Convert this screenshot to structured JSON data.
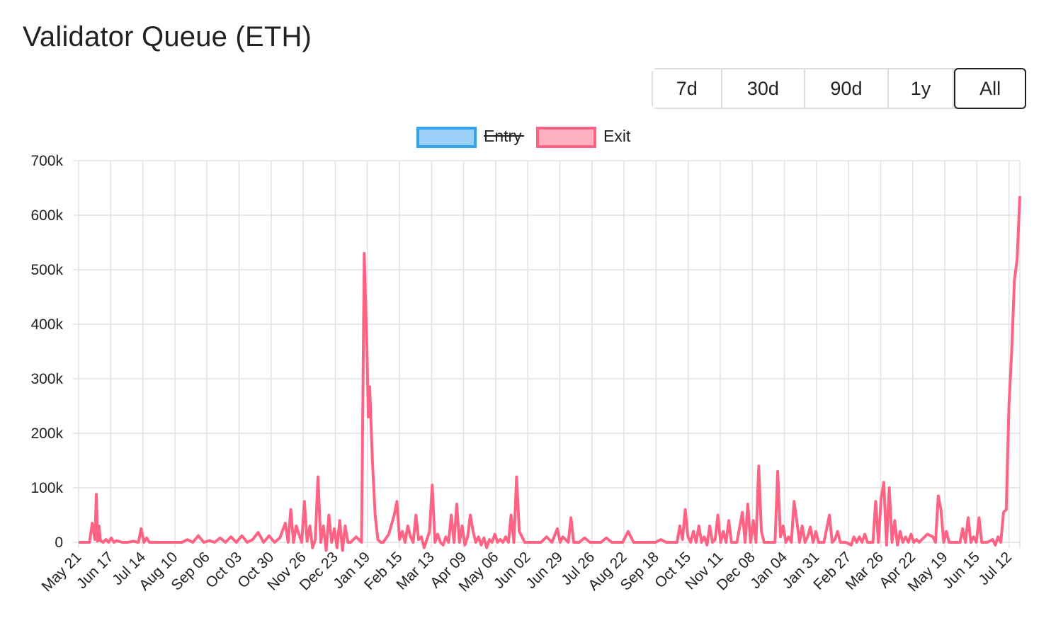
{
  "title": "Validator Queue (ETH)",
  "range_buttons": [
    {
      "label": "7d",
      "active": false
    },
    {
      "label": "30d",
      "active": false
    },
    {
      "label": "90d",
      "active": false
    },
    {
      "label": "1y",
      "active": false
    },
    {
      "label": "All",
      "active": true
    }
  ],
  "chart_data": {
    "type": "line",
    "legend_position": "top-center",
    "grid": true,
    "ylim": [
      0,
      700000
    ],
    "y_ticks": [
      "0",
      "100k",
      "200k",
      "300k",
      "400k",
      "500k",
      "600k",
      "700k"
    ],
    "y_tick_values": [
      0,
      100000,
      200000,
      300000,
      400000,
      500000,
      600000,
      700000
    ],
    "x_tick_labels": [
      "May 21",
      "Jun 17",
      "Jul 14",
      "Aug 10",
      "Sep 06",
      "Oct 03",
      "Oct 30",
      "Nov 26",
      "Dec 23",
      "Jan 19",
      "Feb 15",
      "Mar 13",
      "Apr 09",
      "May 06",
      "Jun 02",
      "Jun 29",
      "Jul 26",
      "Aug 22",
      "Sep 18",
      "Oct 15",
      "Nov 11",
      "Dec 08",
      "Jan 04",
      "Jan 31",
      "Feb 27",
      "Mar 26",
      "Apr 22",
      "May 19",
      "Jun 15",
      "Jul 12"
    ],
    "series": [
      {
        "name": "Entry",
        "hidden": true,
        "color": "#36a2eb",
        "fill": "#9ad0f5",
        "points": []
      },
      {
        "name": "Exit",
        "hidden": false,
        "color": "#ff6384",
        "fill": "#ffb1c1",
        "points": [
          [
            0,
            0
          ],
          [
            2,
            0
          ],
          [
            4,
            0
          ],
          [
            5,
            35000
          ],
          [
            6,
            5000
          ],
          [
            6.5,
            88000
          ],
          [
            7,
            2000
          ],
          [
            7.5,
            30000
          ],
          [
            8,
            3000
          ],
          [
            9,
            0
          ],
          [
            10,
            5000
          ],
          [
            11,
            0
          ],
          [
            12,
            8000
          ],
          [
            13,
            0
          ],
          [
            14,
            3000
          ],
          [
            16,
            0
          ],
          [
            18,
            0
          ],
          [
            20,
            2000
          ],
          [
            22,
            0
          ],
          [
            23,
            25000
          ],
          [
            24,
            0
          ],
          [
            25,
            8000
          ],
          [
            26,
            0
          ],
          [
            28,
            0
          ],
          [
            30,
            0
          ],
          [
            32,
            0
          ],
          [
            34,
            0
          ],
          [
            36,
            0
          ],
          [
            38,
            0
          ],
          [
            40,
            5000
          ],
          [
            42,
            0
          ],
          [
            44,
            12000
          ],
          [
            46,
            0
          ],
          [
            48,
            3000
          ],
          [
            50,
            0
          ],
          [
            52,
            8000
          ],
          [
            54,
            0
          ],
          [
            56,
            10000
          ],
          [
            58,
            0
          ],
          [
            60,
            12000
          ],
          [
            62,
            0
          ],
          [
            64,
            5000
          ],
          [
            66,
            18000
          ],
          [
            68,
            0
          ],
          [
            70,
            12000
          ],
          [
            72,
            0
          ],
          [
            74,
            8000
          ],
          [
            76,
            35000
          ],
          [
            77,
            0
          ],
          [
            78,
            60000
          ],
          [
            79,
            0
          ],
          [
            80,
            30000
          ],
          [
            82,
            0
          ],
          [
            83,
            75000
          ],
          [
            84,
            2000
          ],
          [
            85,
            30000
          ],
          [
            86,
            -10000
          ],
          [
            87,
            5000
          ],
          [
            88,
            120000
          ],
          [
            89,
            0
          ],
          [
            90,
            30000
          ],
          [
            91,
            -15000
          ],
          [
            92,
            50000
          ],
          [
            93,
            0
          ],
          [
            94,
            25000
          ],
          [
            95,
            -10000
          ],
          [
            96,
            40000
          ],
          [
            97,
            -15000
          ],
          [
            98,
            30000
          ],
          [
            99,
            0
          ],
          [
            100,
            0
          ],
          [
            102,
            10000
          ],
          [
            104,
            0
          ],
          [
            105,
            530000
          ],
          [
            106,
            350000
          ],
          [
            106.5,
            230000
          ],
          [
            107,
            285000
          ],
          [
            108,
            150000
          ],
          [
            109,
            50000
          ],
          [
            110,
            5000
          ],
          [
            111,
            0
          ],
          [
            112,
            0
          ],
          [
            114,
            15000
          ],
          [
            116,
            50000
          ],
          [
            117,
            75000
          ],
          [
            118,
            5000
          ],
          [
            119,
            20000
          ],
          [
            120,
            0
          ],
          [
            121,
            30000
          ],
          [
            122,
            10000
          ],
          [
            123,
            0
          ],
          [
            124,
            50000
          ],
          [
            125,
            5000
          ],
          [
            126,
            10000
          ],
          [
            127,
            -10000
          ],
          [
            128,
            5000
          ],
          [
            129,
            20000
          ],
          [
            130,
            105000
          ],
          [
            131,
            0
          ],
          [
            132,
            15000
          ],
          [
            133,
            0
          ],
          [
            134,
            -5000
          ],
          [
            135,
            10000
          ],
          [
            136,
            0
          ],
          [
            137,
            50000
          ],
          [
            138,
            0
          ],
          [
            139,
            70000
          ],
          [
            140,
            0
          ],
          [
            141,
            30000
          ],
          [
            142,
            -5000
          ],
          [
            143,
            10000
          ],
          [
            144,
            50000
          ],
          [
            145,
            20000
          ],
          [
            146,
            0
          ],
          [
            147,
            10000
          ],
          [
            148,
            -5000
          ],
          [
            149,
            8000
          ],
          [
            150,
            -10000
          ],
          [
            151,
            5000
          ],
          [
            152,
            0
          ],
          [
            153,
            15000
          ],
          [
            154,
            0
          ],
          [
            155,
            5000
          ],
          [
            156,
            0
          ],
          [
            157,
            10000
          ],
          [
            158,
            0
          ],
          [
            159,
            50000
          ],
          [
            160,
            0
          ],
          [
            161,
            120000
          ],
          [
            162,
            20000
          ],
          [
            163,
            10000
          ],
          [
            164,
            0
          ],
          [
            166,
            0
          ],
          [
            168,
            0
          ],
          [
            170,
            0
          ],
          [
            172,
            10000
          ],
          [
            174,
            0
          ],
          [
            176,
            25000
          ],
          [
            177,
            0
          ],
          [
            178,
            10000
          ],
          [
            180,
            0
          ],
          [
            181,
            45000
          ],
          [
            182,
            0
          ],
          [
            184,
            0
          ],
          [
            186,
            8000
          ],
          [
            188,
            0
          ],
          [
            190,
            0
          ],
          [
            192,
            0
          ],
          [
            194,
            8000
          ],
          [
            196,
            0
          ],
          [
            198,
            0
          ],
          [
            200,
            0
          ],
          [
            202,
            20000
          ],
          [
            204,
            0
          ],
          [
            206,
            0
          ],
          [
            208,
            0
          ],
          [
            210,
            0
          ],
          [
            212,
            0
          ],
          [
            214,
            5000
          ],
          [
            216,
            0
          ],
          [
            218,
            0
          ],
          [
            220,
            0
          ],
          [
            221,
            30000
          ],
          [
            222,
            5000
          ],
          [
            223,
            60000
          ],
          [
            224,
            10000
          ],
          [
            225,
            0
          ],
          [
            226,
            20000
          ],
          [
            227,
            0
          ],
          [
            228,
            30000
          ],
          [
            229,
            0
          ],
          [
            230,
            10000
          ],
          [
            231,
            -5000
          ],
          [
            232,
            30000
          ],
          [
            233,
            0
          ],
          [
            234,
            5000
          ],
          [
            235,
            50000
          ],
          [
            236,
            0
          ],
          [
            237,
            20000
          ],
          [
            238,
            0
          ],
          [
            239,
            40000
          ],
          [
            240,
            0
          ],
          [
            242,
            0
          ],
          [
            244,
            55000
          ],
          [
            245,
            0
          ],
          [
            246,
            70000
          ],
          [
            247,
            0
          ],
          [
            248,
            40000
          ],
          [
            249,
            0
          ],
          [
            250,
            140000
          ],
          [
            251,
            20000
          ],
          [
            252,
            0
          ],
          [
            254,
            0
          ],
          [
            256,
            0
          ],
          [
            257,
            130000
          ],
          [
            258,
            10000
          ],
          [
            259,
            30000
          ],
          [
            260,
            0
          ],
          [
            261,
            10000
          ],
          [
            262,
            0
          ],
          [
            263,
            75000
          ],
          [
            264,
            40000
          ],
          [
            265,
            0
          ],
          [
            266,
            30000
          ],
          [
            267,
            0
          ],
          [
            268,
            10000
          ],
          [
            269,
            28000
          ],
          [
            270,
            0
          ],
          [
            271,
            20000
          ],
          [
            272,
            0
          ],
          [
            274,
            0
          ],
          [
            276,
            50000
          ],
          [
            277,
            0
          ],
          [
            278,
            5000
          ],
          [
            279,
            20000
          ],
          [
            280,
            0
          ],
          [
            282,
            0
          ],
          [
            284,
            -5000
          ],
          [
            285,
            10000
          ],
          [
            286,
            0
          ],
          [
            287,
            10000
          ],
          [
            288,
            0
          ],
          [
            289,
            15000
          ],
          [
            290,
            0
          ],
          [
            292,
            0
          ],
          [
            293,
            75000
          ],
          [
            294,
            0
          ],
          [
            295,
            80000
          ],
          [
            296,
            110000
          ],
          [
            297,
            -5000
          ],
          [
            298,
            100000
          ],
          [
            299,
            0
          ],
          [
            300,
            40000
          ],
          [
            301,
            -5000
          ],
          [
            302,
            20000
          ],
          [
            303,
            0
          ],
          [
            304,
            10000
          ],
          [
            305,
            0
          ],
          [
            306,
            15000
          ],
          [
            307,
            0
          ],
          [
            308,
            5000
          ],
          [
            309,
            0
          ],
          [
            310,
            5000
          ],
          [
            312,
            15000
          ],
          [
            314,
            10000
          ],
          [
            315,
            0
          ],
          [
            316,
            85000
          ],
          [
            317,
            60000
          ],
          [
            318,
            0
          ],
          [
            319,
            20000
          ],
          [
            320,
            0
          ],
          [
            322,
            0
          ],
          [
            324,
            0
          ],
          [
            325,
            25000
          ],
          [
            326,
            0
          ],
          [
            327,
            45000
          ],
          [
            328,
            0
          ],
          [
            329,
            10000
          ],
          [
            330,
            0
          ],
          [
            331,
            45000
          ],
          [
            332,
            0
          ],
          [
            334,
            0
          ],
          [
            336,
            5000
          ],
          [
            337,
            -5000
          ],
          [
            338,
            10000
          ],
          [
            339,
            0
          ],
          [
            340,
            55000
          ],
          [
            341,
            60000
          ],
          [
            342,
            250000
          ],
          [
            343,
            350000
          ],
          [
            344,
            480000
          ],
          [
            345,
            520000
          ],
          [
            346,
            635000
          ]
        ]
      }
    ]
  }
}
